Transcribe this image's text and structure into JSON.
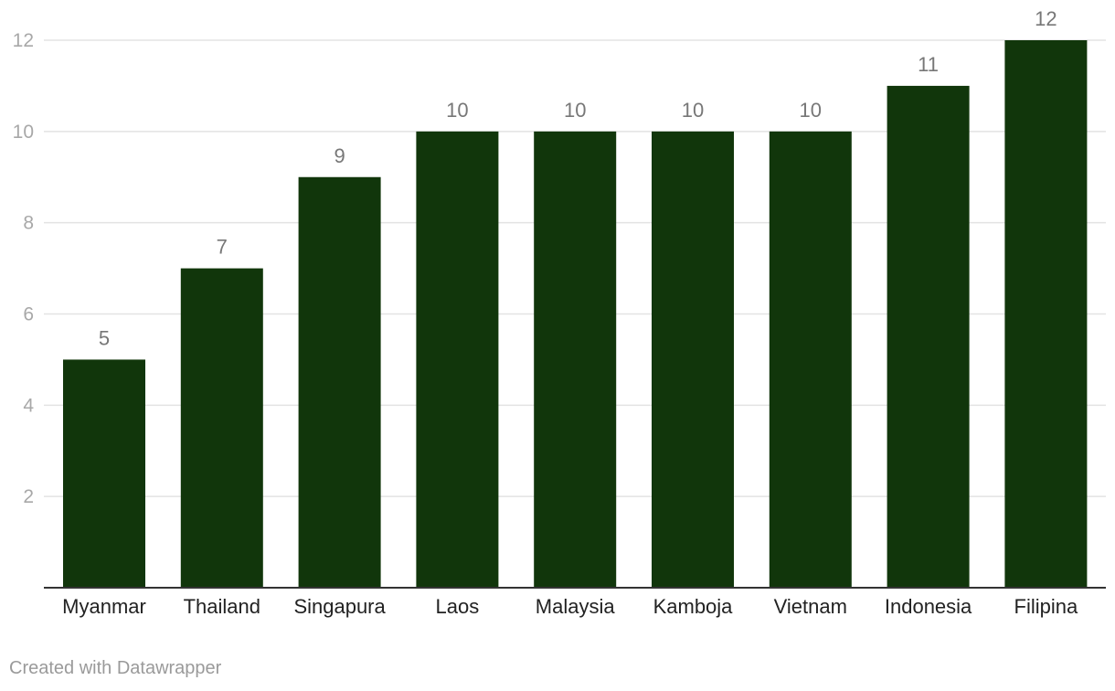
{
  "chart_data": {
    "type": "bar",
    "categories": [
      "Myanmar",
      "Thailand",
      "Singapura",
      "Laos",
      "Malaysia",
      "Kamboja",
      "Vietnam",
      "Indonesia",
      "Filipina"
    ],
    "values": [
      5,
      7,
      9,
      10,
      10,
      10,
      10,
      11,
      12
    ],
    "yticks": [
      2,
      4,
      6,
      8,
      10,
      12
    ],
    "ylim": [
      0,
      12
    ],
    "title": "",
    "xlabel": "",
    "ylabel": "",
    "grid": true,
    "bar_color": "#11360b",
    "gridline_color": "#e3e3e3",
    "value_labels": true
  },
  "footer": {
    "credit": "Created with Datawrapper"
  }
}
